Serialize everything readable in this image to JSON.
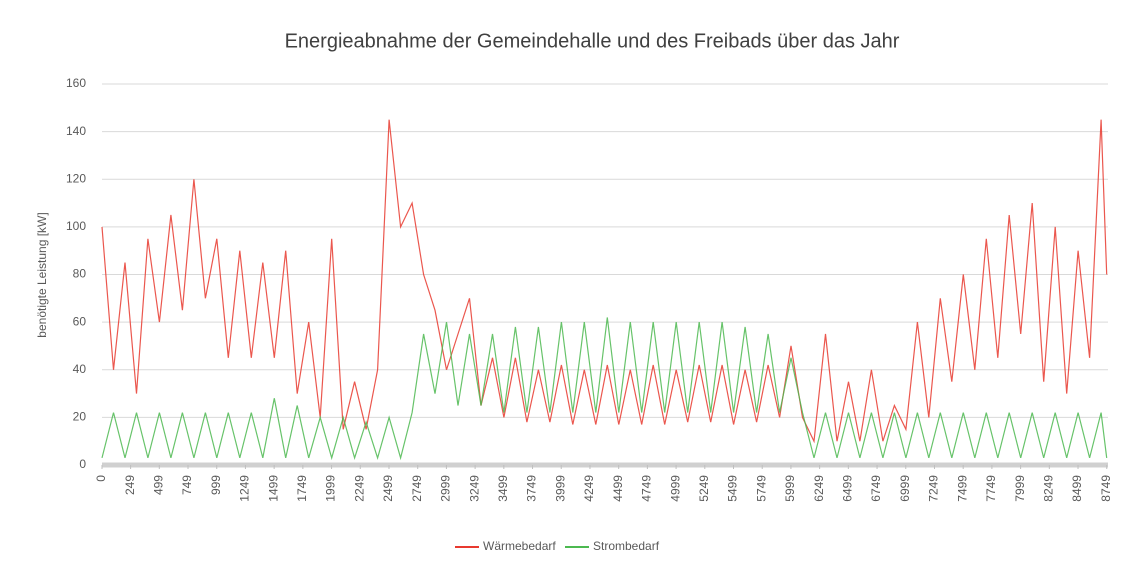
{
  "chart_data": {
    "type": "line",
    "title": "Energieabnahme der Gemeindehalle und des Freibads über das Jahr",
    "y_label": "benötigte Leistung [kW]",
    "x": [
      0,
      100,
      200,
      300,
      400,
      500,
      600,
      700,
      800,
      900,
      1000,
      1100,
      1200,
      1300,
      1400,
      1500,
      1600,
      1700,
      1800,
      1900,
      2000,
      2100,
      2200,
      2300,
      2400,
      2500,
      2600,
      2700,
      2800,
      2900,
      3000,
      3100,
      3200,
      3300,
      3400,
      3500,
      3600,
      3700,
      3800,
      3900,
      4000,
      4100,
      4200,
      4300,
      4400,
      4500,
      4600,
      4700,
      4800,
      4900,
      5000,
      5100,
      5200,
      5300,
      5400,
      5500,
      5600,
      5700,
      5800,
      5900,
      6000,
      6100,
      6200,
      6300,
      6400,
      6500,
      6600,
      6700,
      6800,
      6900,
      7000,
      7100,
      7200,
      7300,
      7400,
      7500,
      7600,
      7700,
      7800,
      7900,
      8000,
      8100,
      8200,
      8300,
      8400,
      8500,
      8600,
      8700,
      8749
    ],
    "series": [
      {
        "name": "Wärmebedarf",
        "color": "#e8392f",
        "values": [
          100,
          40,
          85,
          30,
          95,
          60,
          105,
          65,
          120,
          70,
          95,
          45,
          90,
          45,
          85,
          45,
          90,
          30,
          60,
          20,
          95,
          15,
          35,
          15,
          40,
          145,
          100,
          110,
          80,
          65,
          40,
          55,
          70,
          25,
          45,
          20,
          45,
          18,
          40,
          18,
          42,
          17,
          40,
          17,
          42,
          17,
          40,
          17,
          42,
          17,
          40,
          18,
          42,
          18,
          42,
          17,
          40,
          18,
          42,
          20,
          50,
          20,
          10,
          55,
          10,
          35,
          10,
          40,
          10,
          25,
          15,
          60,
          20,
          70,
          35,
          80,
          40,
          95,
          45,
          105,
          55,
          110,
          35,
          100,
          30,
          90,
          45,
          145,
          80
        ]
      },
      {
        "name": "Strombedarf",
        "color": "#4cb950",
        "values": [
          3,
          22,
          3,
          22,
          3,
          22,
          3,
          22,
          3,
          22,
          3,
          22,
          3,
          22,
          3,
          28,
          3,
          25,
          3,
          20,
          3,
          20,
          3,
          18,
          3,
          20,
          3,
          22,
          55,
          30,
          60,
          25,
          55,
          25,
          55,
          22,
          58,
          22,
          58,
          22,
          60,
          22,
          60,
          22,
          62,
          22,
          60,
          22,
          60,
          22,
          60,
          22,
          60,
          22,
          60,
          22,
          58,
          22,
          55,
          22,
          45,
          22,
          3,
          22,
          3,
          22,
          3,
          22,
          3,
          22,
          3,
          22,
          3,
          22,
          3,
          22,
          3,
          22,
          3,
          22,
          3,
          22,
          3,
          22,
          3,
          22,
          3,
          22,
          3
        ]
      }
    ],
    "xlim": [
      0,
      8760
    ],
    "xticks": [
      0,
      249,
      499,
      749,
      999,
      1249,
      1499,
      1749,
      1999,
      2249,
      2499,
      2749,
      2999,
      3249,
      3499,
      3749,
      3999,
      4249,
      4499,
      4749,
      4999,
      5249,
      5499,
      5749,
      5999,
      6249,
      6499,
      6749,
      6999,
      7249,
      7499,
      7749,
      7999,
      8249,
      8499,
      8749
    ],
    "ylim": [
      0,
      160
    ],
    "yticks": [
      0,
      20,
      40,
      60,
      80,
      100,
      120,
      140,
      160
    ],
    "grid": true,
    "legend": "bottom"
  }
}
